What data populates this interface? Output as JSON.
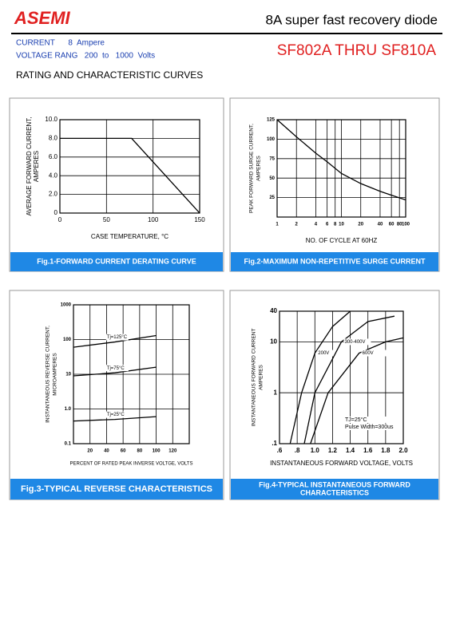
{
  "header": {
    "logo": "ASEMI",
    "title": "8A super fast recovery diode",
    "specs": [
      "CURRENT      8  Ampere",
      "VOLTAGE RANG   200  to   1000  Volts"
    ],
    "part": "SF802A THRU SF810A",
    "section": "RATING AND CHARACTERISTIC CURVES"
  },
  "chart_data": [
    {
      "type": "line",
      "ylabel": [
        "AVERAGE FORWARD CURRENT,",
        "AMPERES"
      ],
      "xlabel": "CASE TEMPERATURE, °C",
      "caption": [
        "Fig.1-FORWARD CURRENT DERATING CURVE"
      ],
      "x": [
        0,
        77,
        150
      ],
      "values": [
        8,
        8,
        0
      ],
      "color": "#000000",
      "xlim": [
        0,
        150
      ],
      "xticks": [
        0,
        50,
        100,
        150
      ],
      "ylim": [
        0,
        10
      ],
      "yticks": [
        0,
        {
          "value": 2,
          "label": "2.0"
        },
        {
          "value": 4,
          "label": "4.0"
        },
        {
          "value": 6,
          "label": "6.0"
        },
        {
          "value": 8,
          "label": "8.0"
        },
        {
          "value": 10,
          "label": "10.0"
        }
      ],
      "grid": true
    },
    {
      "type": "line",
      "ylabel": [
        "PEAK FORWARD SURGE CURRENT,",
        "AMPERES"
      ],
      "xlabel": "NO. OF CYCLE AT 60HZ",
      "caption": [
        "Fig.2-MAXIMUM NON-REPETITIVE SURGE CURRENT"
      ],
      "x": [
        1,
        2,
        4,
        6,
        10,
        20,
        40,
        60,
        100
      ],
      "values": [
        125,
        103,
        82,
        71,
        56,
        43,
        33,
        28,
        22
      ],
      "color": "#000000",
      "xlog": true,
      "xlim": [
        1,
        100
      ],
      "xticks": [
        1,
        2,
        4,
        6,
        8,
        10,
        20,
        40,
        60,
        80,
        100
      ],
      "ylim": [
        0,
        125
      ],
      "yticks": [
        25,
        50,
        75,
        100,
        125
      ],
      "grid": true
    },
    {
      "type": "line",
      "ylabel": [
        "INSTANTANEOUS REVERSE CURRENT,",
        "MICROAMPERES"
      ],
      "xlabel": "PERCENT OF RATED PEAK INVERSE VOLTGE, VOLTS",
      "caption": [
        "Fig.3-TYPICAL REVERSE CHARACTERISTICS"
      ],
      "series": [
        {
          "name": "Tj=125°C",
          "color": "#000000",
          "x": [
            0,
            50,
            100
          ],
          "values": [
            60,
            85,
            130
          ]
        },
        {
          "name": "Tj=75°C",
          "color": "#000000",
          "x": [
            0,
            50,
            100
          ],
          "values": [
            9,
            11,
            16
          ]
        },
        {
          "name": "Tj=25°C",
          "color": "#000000",
          "x": [
            0,
            50,
            100
          ],
          "values": [
            0.45,
            0.5,
            0.6
          ]
        }
      ],
      "ylog": true,
      "xlim": [
        0,
        140
      ],
      "xticks": [
        20,
        40,
        60,
        80,
        100,
        120
      ],
      "ylim": [
        0.1,
        1000
      ],
      "yticks": [
        {
          "value": 0.1,
          "label": "0.1"
        },
        {
          "value": 1,
          "label": "1.0"
        },
        10,
        100,
        1000
      ],
      "grid": true
    },
    {
      "type": "line",
      "ylabel": [
        "INSTANTANEOUS FORWARD CURRENT",
        "AMPERES"
      ],
      "xlabel": "INSTANTANEOUS FORWARD VOLTAGE, VOLTS",
      "caption": [
        "Fig.4-TYPICAL INSTANTANEOUS FORWARD",
        "CHARACTERISTICS"
      ],
      "series": [
        {
          "name": "200V",
          "color": "#000000",
          "x": [
            0.72,
            0.85,
            1.0,
            1.2,
            1.4
          ],
          "values": [
            0.1,
            1,
            6,
            20,
            40
          ]
        },
        {
          "name": "300-400V",
          "color": "#000000",
          "x": [
            0.88,
            1.0,
            1.3,
            1.6,
            1.9
          ],
          "values": [
            0.1,
            1,
            10,
            25,
            32
          ]
        },
        {
          "name": "600V",
          "color": "#000000",
          "x": [
            0.95,
            1.15,
            1.5,
            1.8,
            2.0
          ],
          "values": [
            0.1,
            1,
            6,
            10,
            12
          ]
        }
      ],
      "annotations": [
        "TJ=25°C",
        "Pulse Width=300us"
      ],
      "ylog": true,
      "xlim": [
        0.6,
        2.0
      ],
      "xticks": [
        {
          "value": 0.6,
          "label": ".6"
        },
        {
          "value": 0.8,
          "label": ".8"
        },
        {
          "value": 1,
          "label": "1.0"
        },
        {
          "value": 1.2,
          "label": "1.2"
        },
        {
          "value": 1.4,
          "label": "1.4"
        },
        {
          "value": 1.6,
          "label": "1.6"
        },
        {
          "value": 1.8,
          "label": "1.8"
        },
        {
          "value": 2,
          "label": "2.0"
        }
      ],
      "ylim": [
        0.1,
        40
      ],
      "yticks": [
        {
          "value": 0.1,
          "label": ".1"
        },
        1,
        10,
        40
      ],
      "grid": true
    }
  ]
}
